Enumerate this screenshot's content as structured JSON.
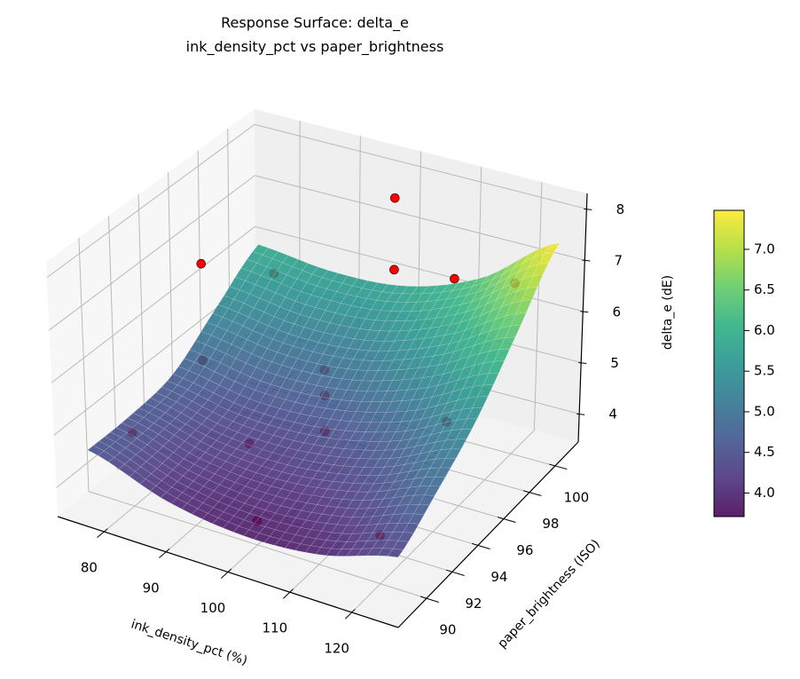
{
  "chart_data": {
    "type": "surface3d",
    "title": "Response Surface: delta_e",
    "subtitle": "ink_density_pct vs paper_brightness",
    "xlabel": "ink_density_pct (%)",
    "ylabel": "paper_brightness (ISO)",
    "zlabel": "delta_e (dE)",
    "xlim": [
      72.5,
      127.5
    ],
    "ylim": [
      87.8,
      101.8
    ],
    "zlim": [
      3.45,
      8.3
    ],
    "xticks": [
      "80",
      "90",
      "100",
      "110",
      "120"
    ],
    "yticks": [
      "90",
      "92",
      "94",
      "96",
      "98",
      "100"
    ],
    "zticks": [
      "4",
      "5",
      "6",
      "7",
      "8"
    ],
    "grid": true,
    "colormap": "viridis",
    "surface": {
      "x": [
        75,
        87.5,
        100,
        112.5,
        125
      ],
      "y": [
        89,
        92,
        95,
        98,
        101
      ],
      "z": [
        [
          4.55,
          4.05,
          3.85,
          3.95,
          4.35
        ],
        [
          4.56,
          4.19,
          4.11,
          4.34,
          4.86
        ],
        [
          4.7,
          4.45,
          4.5,
          4.85,
          5.5
        ],
        [
          5.3,
          5.1,
          5.2,
          5.7,
          6.45
        ],
        [
          5.9,
          5.75,
          5.85,
          6.4,
          7.45
        ]
      ]
    },
    "points": [
      {
        "x": 80,
        "y": 95,
        "z": 6.99,
        "occluded": false
      },
      {
        "x": 100,
        "y": 100,
        "z": 7.79,
        "occluded": false
      },
      {
        "x": 100,
        "y": 100,
        "z": 6.4,
        "occluded": false
      },
      {
        "x": 80,
        "y": 100,
        "z": 5.71,
        "occluded": true
      },
      {
        "x": 110,
        "y": 100,
        "z": 6.53,
        "occluded": true
      },
      {
        "x": 120,
        "y": 100,
        "z": 6.75,
        "occluded": true
      },
      {
        "x": 80,
        "y": 95,
        "z": 5.13,
        "occluded": true
      },
      {
        "x": 100,
        "y": 95,
        "z": 5.61,
        "occluded": true
      },
      {
        "x": 100,
        "y": 95,
        "z": 5.12,
        "occluded": true
      },
      {
        "x": 100,
        "y": 95,
        "z": 4.44,
        "occluded": true
      },
      {
        "x": 120,
        "y": 95,
        "z": 5.28,
        "occluded": true
      },
      {
        "x": 80,
        "y": 90,
        "z": 4.85,
        "occluded": true
      },
      {
        "x": 87.5,
        "y": 95,
        "z": 3.78,
        "occluded": true
      },
      {
        "x": 100,
        "y": 90,
        "z": 3.9,
        "occluded": true
      },
      {
        "x": 120,
        "y": 90,
        "z": 4.34,
        "occluded": true
      }
    ],
    "point_color": "#ff0000",
    "colorbar": {
      "range": [
        3.71,
        7.48
      ],
      "ticks": [
        "4.0",
        "4.5",
        "5.0",
        "5.5",
        "6.0",
        "6.5",
        "7.0"
      ]
    }
  }
}
